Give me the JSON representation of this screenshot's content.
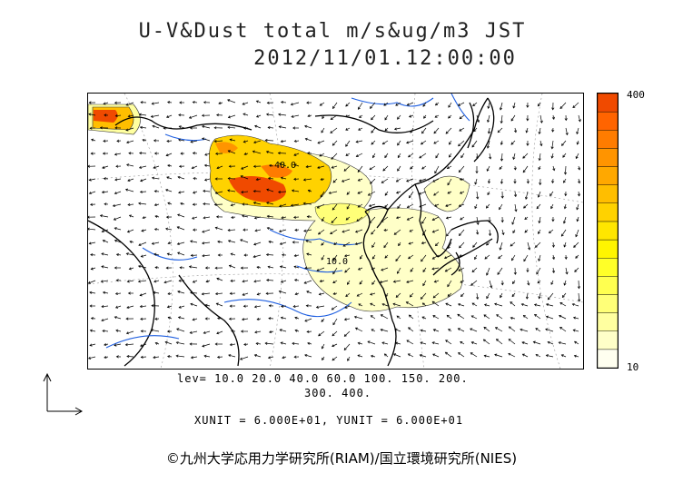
{
  "title": {
    "line1": "U-V&Dust total m/s&ug/m3 JST",
    "line2": "2012/11/01.12:00:00"
  },
  "colorbar": {
    "max_label": "400",
    "min_label": "10",
    "colors": [
      "#fffff0",
      "#ffffc8",
      "#ffffa0",
      "#ffff78",
      "#ffff50",
      "#ffff28",
      "#fff500",
      "#ffe600",
      "#ffd200",
      "#ffbe00",
      "#ffa800",
      "#ff9400",
      "#ff7c00",
      "#ff6400",
      "#f04a00"
    ]
  },
  "levels": {
    "line1": "lev= 10.0 20.0 40.0 60.0 100. 150. 200.",
    "line2": "300. 400."
  },
  "units": "XUNIT = 6.000E+01, YUNIT = 6.000E+01",
  "credit": "©九州大学応用力学研究所(RIAM)/国立環境研究所(NIES)",
  "map": {
    "contour_labels": [
      "10.0",
      "40.0"
    ],
    "colors": {
      "water": "#1f5fe0",
      "coast": "#000000",
      "dust_high": "#f04a00",
      "dust_mid": "#ffa800",
      "dust_low": "#ffffc0"
    }
  }
}
